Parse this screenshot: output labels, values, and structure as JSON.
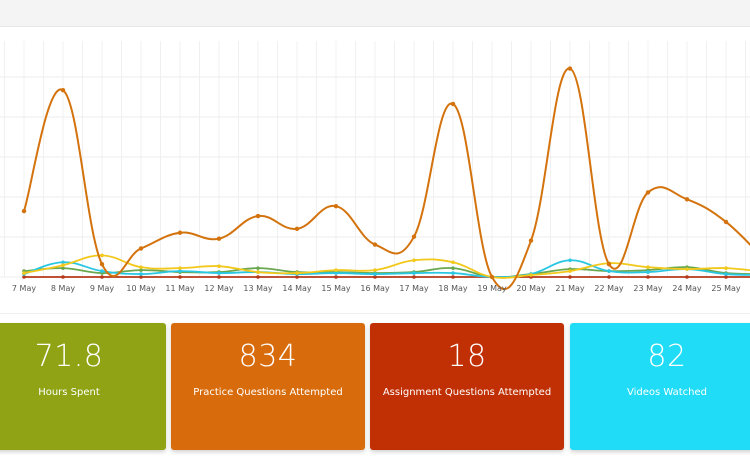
{
  "chart_data": {
    "type": "line",
    "categories": [
      "7 May",
      "8 May",
      "9 May",
      "10 May",
      "11 May",
      "12 May",
      "13 May",
      "14 May",
      "15 May",
      "16 May",
      "17 May",
      "18 May",
      "19 May",
      "20 May",
      "21 May",
      "22 May",
      "23 May",
      "24 May",
      "25 May",
      "26"
    ],
    "series": [
      {
        "color": "#d4730d",
        "values": [
          67,
          190,
          13,
          29,
          45,
          39,
          62,
          49,
          72,
          33,
          41,
          176,
          0,
          37,
          212,
          13,
          86,
          79,
          56,
          17
        ]
      },
      {
        "color": "#f2c81b",
        "values": [
          4,
          12,
          22,
          10,
          9,
          11,
          5,
          4,
          7,
          7,
          17,
          15,
          0,
          2,
          6,
          14,
          10,
          8,
          9,
          5
        ]
      },
      {
        "color": "#2ac7e3",
        "values": [
          3,
          15,
          6,
          3,
          6,
          4,
          5,
          3,
          4,
          3,
          4,
          4,
          0,
          3,
          17,
          6,
          5,
          8,
          3,
          2
        ]
      },
      {
        "color": "#6aa84f",
        "values": [
          6,
          9,
          4,
          7,
          5,
          5,
          9,
          5,
          5,
          4,
          5,
          9,
          0,
          3,
          8,
          6,
          7,
          10,
          4,
          3
        ]
      },
      {
        "color": "#b5391a",
        "values": [
          0,
          0,
          0,
          0,
          0,
          0,
          0,
          0,
          0,
          0,
          0,
          0,
          0,
          0,
          0,
          0,
          0,
          0,
          0,
          0
        ]
      }
    ],
    "ylim": [
      0,
      240
    ],
    "grid": true
  },
  "cards": [
    {
      "value": "71.8",
      "label": "Hours Spent",
      "color": "#8fa314"
    },
    {
      "value": "834",
      "label": "Practice Questions Attempted",
      "color": "#d86c0c"
    },
    {
      "value": "18",
      "label": "Assignment Questions Attempted",
      "color": "#c12f04"
    },
    {
      "value": "82",
      "label": "Videos Watched",
      "color": "#21dcf6"
    }
  ]
}
